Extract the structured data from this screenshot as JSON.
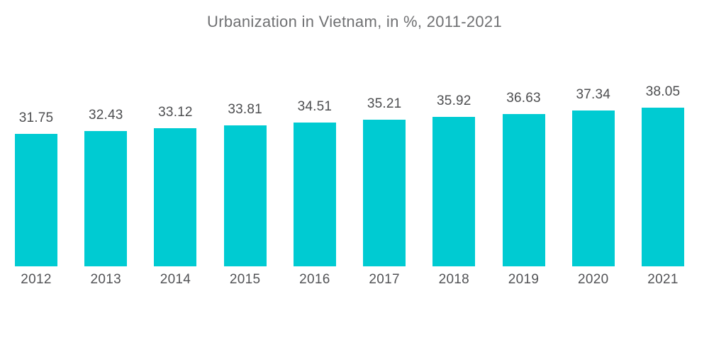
{
  "title": "Urbanization in Vietnam, in %, 2011-2021",
  "colors": {
    "bar": "#00cbd2",
    "title_text": "#6f7072",
    "value_text": "#4c4d4f",
    "year_text": "#525356",
    "background": "#ffffff"
  },
  "chart_data": {
    "type": "bar",
    "title": "Urbanization in Vietnam, in %, 2011-2021",
    "categories": [
      "2012",
      "2013",
      "2014",
      "2015",
      "2016",
      "2017",
      "2018",
      "2019",
      "2020",
      "2021"
    ],
    "values": [
      31.75,
      32.43,
      33.12,
      33.81,
      34.51,
      35.21,
      35.92,
      36.63,
      37.34,
      38.05
    ],
    "value_labels": [
      "31.75",
      "32.43",
      "33.12",
      "33.81",
      "34.51",
      "35.21",
      "35.92",
      "36.63",
      "37.34",
      "38.05"
    ],
    "xlabel": "",
    "ylabel": "",
    "ylim": [
      0,
      45
    ],
    "grid": false,
    "legend": false,
    "axes_visible": false,
    "value_labels_position": "above-bars",
    "legend_position": "none"
  }
}
